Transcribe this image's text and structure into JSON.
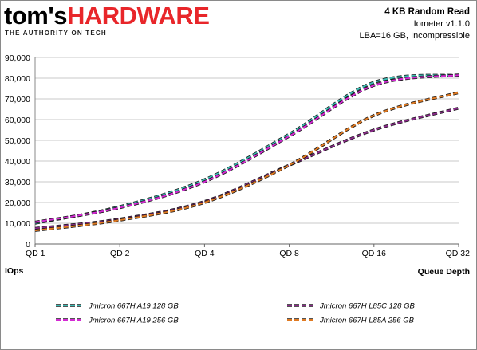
{
  "brand": {
    "name_part1": "tom's",
    "name_part2": "HARDWARE",
    "tagline": "THE AUTHORITY ON TECH"
  },
  "header": {
    "title": "4 KB Random Read",
    "line2": "Iometer v1.1.0",
    "line3": "LBA=16 GB, Incompressible"
  },
  "colors": {
    "brand_red": "#e8262a",
    "grid": "#c8c8c8"
  },
  "chart_data": {
    "type": "line",
    "categories": [
      "QD 1",
      "QD 2",
      "QD 4",
      "QD 8",
      "QD 16",
      "QD 32"
    ],
    "xlabel": "Queue Depth",
    "ylabel": "IOps",
    "ylim": [
      0,
      90000
    ],
    "yticks": [
      0,
      10000,
      20000,
      30000,
      40000,
      50000,
      60000,
      70000,
      80000,
      90000
    ],
    "ytick_labels": [
      "0",
      "10,000",
      "20,000",
      "30,000",
      "40,000",
      "50,000",
      "60,000",
      "70,000",
      "80,000",
      "90,000"
    ],
    "grid": true,
    "legend_position": "bottom",
    "series": [
      {
        "name": "Jmicron 667H A19 128 GB",
        "color": "#3cbcb4",
        "values": [
          10000,
          18000,
          31000,
          53000,
          78000,
          81500
        ]
      },
      {
        "name": "Jmicron 667H A19 256 GB",
        "color": "#d42ad4",
        "values": [
          10500,
          17500,
          30000,
          52000,
          76500,
          81500
        ]
      },
      {
        "name": "Jmicron 667H L85C 128 GB",
        "color": "#8a2a8a",
        "values": [
          7500,
          12000,
          20500,
          38000,
          55000,
          65500
        ]
      },
      {
        "name": "Jmicron 667H L85A 256 GB",
        "color": "#e07a22",
        "values": [
          6500,
          11500,
          20000,
          38000,
          62000,
          73000
        ]
      }
    ]
  }
}
